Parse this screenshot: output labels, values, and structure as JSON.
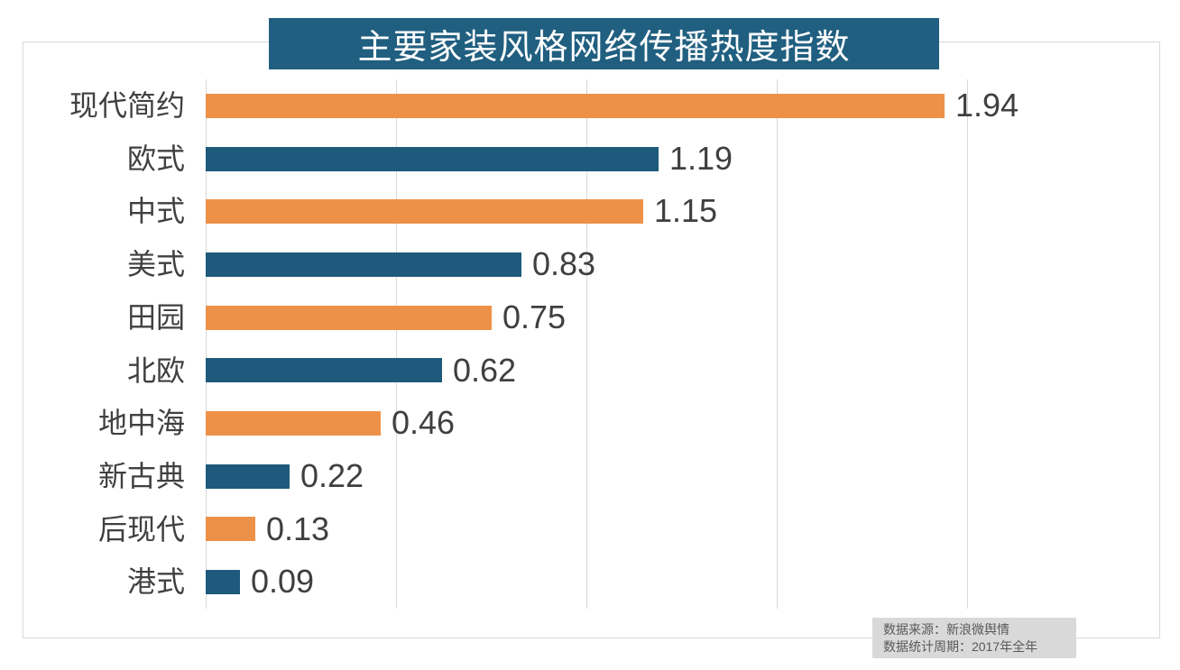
{
  "title": "主要家装风格网络传播热度指数",
  "colors": {
    "title_bg": "#205f80",
    "title_text": "#ffffff",
    "bar_orange": "#ee9148",
    "bar_blue": "#1e5a7b",
    "label_text": "#404040",
    "value_text": "#3f3f3f",
    "grid_line": "#d9d9d9",
    "frame_border": "#d9d9d9",
    "footer_bg": "#d9d9d9",
    "footer_text": "#595959"
  },
  "chart_data": {
    "type": "bar",
    "orientation": "horizontal",
    "title": "主要家装风格网络传播热度指数",
    "categories": [
      "现代简约",
      "欧式",
      "中式",
      "美式",
      "田园",
      "北欧",
      "地中海",
      "新古典",
      "后现代",
      "港式"
    ],
    "values": [
      1.94,
      1.19,
      1.15,
      0.83,
      0.75,
      0.62,
      0.46,
      0.22,
      0.13,
      0.09
    ],
    "value_labels": [
      "1.94",
      "1.19",
      "1.15",
      "0.83",
      "0.75",
      "0.62",
      "0.46",
      "0.22",
      "0.13",
      "0.09"
    ],
    "xlabel": "",
    "ylabel": "",
    "xlim": [
      0,
      2.05
    ],
    "gridlines_x": [
      0,
      0.5,
      1.0,
      1.5,
      2.0
    ],
    "grid": true,
    "legend": false,
    "bar_color_pattern": [
      "#ee9148",
      "#1e5a7b"
    ]
  },
  "footer": {
    "line1": "数据来源：新浪微舆情",
    "line2": "数据统计周期：2017年全年"
  }
}
